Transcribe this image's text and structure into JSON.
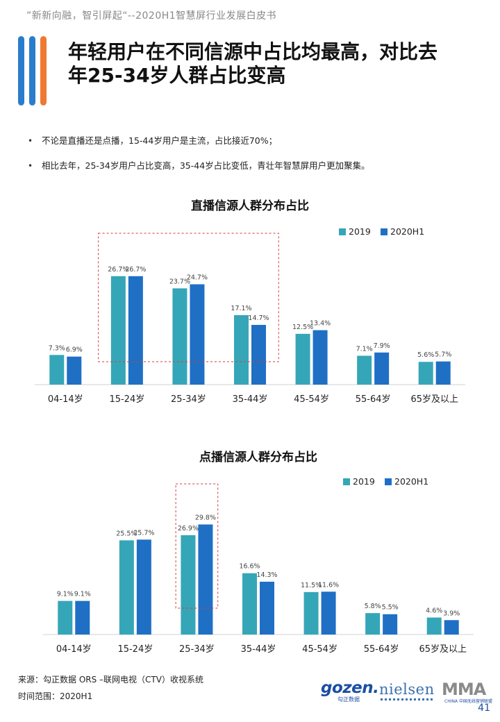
{
  "header": {
    "subtitle": "”新新向融，智引屏起“--2020H1智慧屏行业发展白皮书"
  },
  "colors": {
    "series_2019": "#35a6b8",
    "series_2020": "#1f6fc5",
    "deco_blue": "#2a7dcb",
    "deco_orange": "#ee7a32",
    "highlight_box": "#d93a3a"
  },
  "title": {
    "line1": "年轻用户在不同信源中占比均最高，对比去",
    "line2": "年25-34岁人群占比变高"
  },
  "bullets": [
    "不论是直播还是点播，15-44岁用户是主流，占比接近70%；",
    "相比去年，25-34岁用户占比变高，35-44岁占比变低，青壮年智慧屏用户更加聚集。"
  ],
  "chart_data": [
    {
      "type": "bar",
      "title": "直播信源人群分布占比",
      "categories": [
        "04-14岁",
        "15-24岁",
        "25-34岁",
        "35-44岁",
        "45-54岁",
        "55-64岁",
        "65岁及以上"
      ],
      "series": [
        {
          "name": "2019",
          "values": [
            7.3,
            26.7,
            23.7,
            17.1,
            12.5,
            7.1,
            5.6
          ],
          "labels": [
            "7.3%",
            "26.7%",
            "23.7%",
            "17.1%",
            "12.5%",
            "7.1%",
            "5.6%"
          ]
        },
        {
          "name": "2020H1",
          "values": [
            6.9,
            26.7,
            24.7,
            14.7,
            13.4,
            7.9,
            5.7
          ],
          "labels": [
            "6.9%",
            "26.7%",
            "24.7%",
            "14.7%",
            "13.4%",
            "7.9%",
            "5.7%"
          ]
        }
      ],
      "legend": "top-right",
      "highlight": [
        "15-24岁",
        "35-44岁"
      ],
      "grid": false
    },
    {
      "type": "bar",
      "title": "点播信源人群分布占比",
      "categories": [
        "04-14岁",
        "15-24岁",
        "25-34岁",
        "35-44岁",
        "45-54岁",
        "55-64岁",
        "65岁及以上"
      ],
      "series": [
        {
          "name": "2019",
          "values": [
            9.1,
            25.5,
            26.9,
            16.6,
            11.5,
            5.8,
            4.6
          ],
          "labels": [
            "9.1%",
            "25.5%",
            "26.9%",
            "16.6%",
            "11.5%",
            "5.8%",
            "4.6%"
          ]
        },
        {
          "name": "2020H1",
          "values": [
            9.1,
            25.7,
            29.8,
            14.3,
            11.6,
            5.5,
            3.9
          ],
          "labels": [
            "9.1%",
            "25.7%",
            "29.8%",
            "14.3%",
            "11.6%",
            "5.5%",
            "3.9%"
          ]
        }
      ],
      "legend": "top-right",
      "highlight": [
        "25-34岁",
        "25-34岁"
      ],
      "grid": false
    }
  ],
  "footer": {
    "source": "来源：勾正数据 ORS –联网电视（CTV）收视系统",
    "time_range": "时间范围：2020H1",
    "page_number": "41"
  },
  "logos": {
    "gozen": "gozen.",
    "gozen_sub": "勾正数据",
    "nielsen": "nielsen",
    "mma": "MMA",
    "mma_sub": "CHINA 中国无线营销联盟"
  }
}
